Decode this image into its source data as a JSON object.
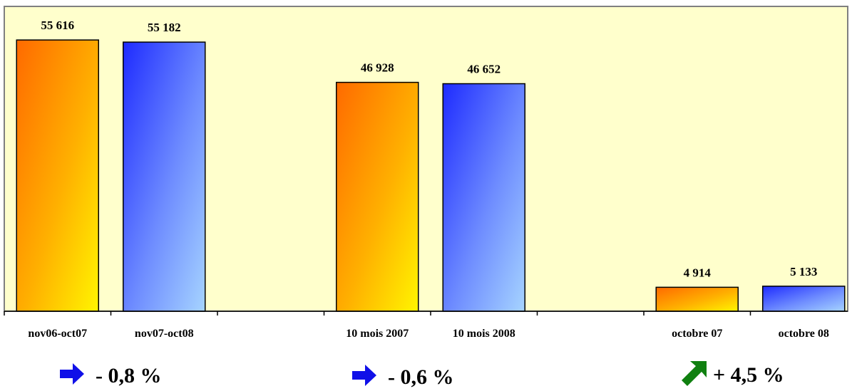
{
  "chart_data": {
    "type": "bar",
    "categories": [
      "nov06-oct07",
      "nov07-oct08",
      "",
      "10 mois 2007",
      "10 mois 2008",
      "",
      "octobre 07",
      "octobre 08"
    ],
    "values": [
      55616,
      55182,
      null,
      46928,
      46652,
      null,
      4914,
      5133
    ],
    "value_labels": [
      "55 616",
      "55 182",
      "",
      "46 928",
      "46 652",
      "",
      "4 914",
      "5 133"
    ],
    "series_colors": [
      "orange-yellow",
      "blue",
      null,
      "orange-yellow",
      "blue",
      null,
      "orange-yellow",
      "blue"
    ],
    "ylim": [
      0,
      62500
    ],
    "grid": false,
    "legend": "none",
    "background": "#FFFFCC"
  },
  "changes": [
    {
      "text": "- 0,8 %",
      "icon": "arrow-right-icon",
      "color": "#1010E8"
    },
    {
      "text": "- 0,6 %",
      "icon": "arrow-right-icon",
      "color": "#1010E8"
    },
    {
      "text": "+ 4,5 %",
      "icon": "arrow-up-right-icon",
      "color": "#108010"
    }
  ]
}
